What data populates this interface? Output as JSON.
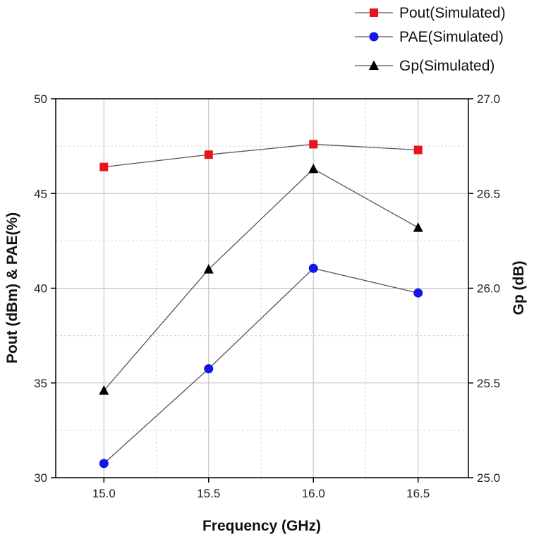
{
  "chart_data": {
    "type": "line",
    "x": [
      15.0,
      15.5,
      16.0,
      16.5
    ],
    "x_tick_labels": [
      "15.0",
      "15.5",
      "16.0",
      "16.5"
    ],
    "xlabel": "Frequency (GHz)",
    "xlim": [
      14.77,
      16.74
    ],
    "ylabel_left": "Pout (dBm) & PAE(%)",
    "ylim_left": [
      30,
      50
    ],
    "y_ticks_left": [
      "30",
      "35",
      "40",
      "45",
      "50"
    ],
    "ylabel_right": "Gp (dB)",
    "ylim_right": [
      25.0,
      27.0
    ],
    "y_ticks_right": [
      "25.0",
      "25.5",
      "26.0",
      "26.5",
      "27.0"
    ],
    "grid": true,
    "legend_position": "top-right, outside plot",
    "series": [
      {
        "name": "Pout(Simulated)",
        "axis": "left",
        "marker": "square",
        "color": "#e8141b",
        "values": [
          46.4,
          47.05,
          47.6,
          47.3
        ]
      },
      {
        "name": "PAE(Simulated)",
        "axis": "left",
        "marker": "circle",
        "color": "#1515e6",
        "values": [
          30.75,
          35.75,
          41.05,
          39.75
        ]
      },
      {
        "name": "Gp(Simulated)",
        "axis": "right",
        "marker": "triangle",
        "color": "#000000",
        "values": [
          25.46,
          26.1,
          26.63,
          26.32
        ]
      }
    ],
    "line_color": "#555555"
  }
}
